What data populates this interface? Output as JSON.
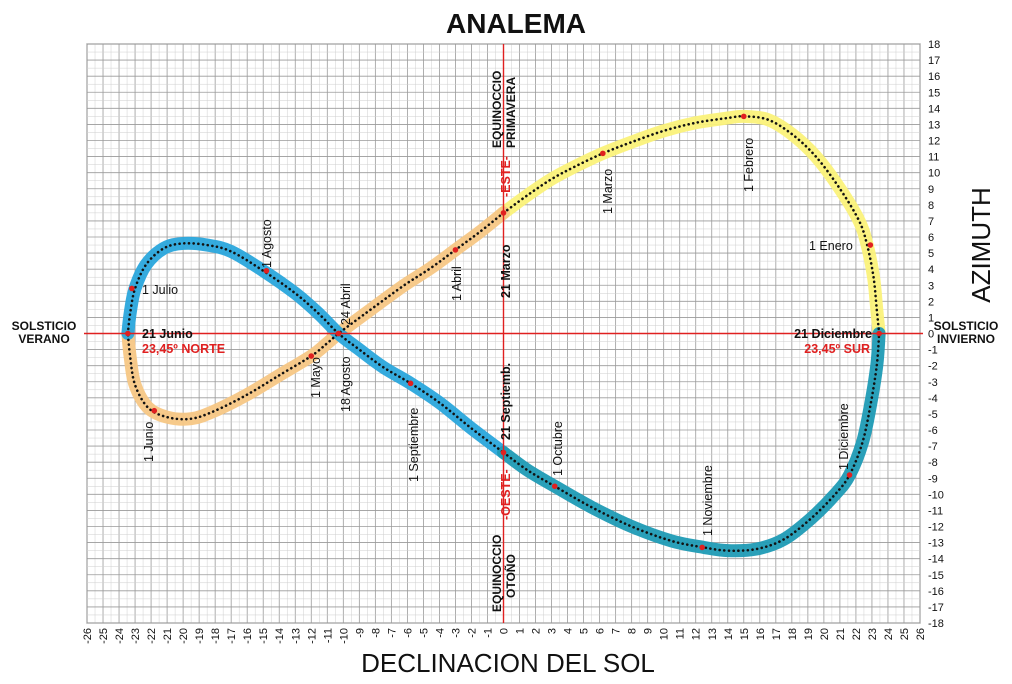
{
  "chart_data": {
    "type": "line",
    "title": "ANALEMA",
    "xlabel": "DECLINACION DEL SOL",
    "ylabel": "AZIMUTH",
    "xlim": [
      -26,
      26
    ],
    "ylim": [
      -18,
      18
    ],
    "x_ticks": [
      "-26",
      "-25",
      "-24",
      "-23",
      "-22",
      "-21",
      "-20",
      "-19",
      "-18",
      "-17",
      "-16",
      "-15",
      "-14",
      "-13",
      "-12",
      "-11",
      "-10",
      "-9",
      "-8",
      "-7",
      "-6",
      "-5",
      "-4",
      "-3",
      "-2",
      "-1",
      "0",
      "1",
      "2",
      "3",
      "4",
      "5",
      "6",
      "7",
      "8",
      "9",
      "10",
      "11",
      "12",
      "13",
      "14",
      "15",
      "16",
      "17",
      "18",
      "19",
      "20",
      "21",
      "22",
      "23",
      "24",
      "25",
      "26"
    ],
    "y_ticks": [
      "-18",
      "-17",
      "-16",
      "-15",
      "-14",
      "-13",
      "-12",
      "-11",
      "-10",
      "-9",
      "-8",
      "-7",
      "-6",
      "-5",
      "-4",
      "-3",
      "-2",
      "-1",
      "0",
      "1",
      "2",
      "3",
      "4",
      "5",
      "6",
      "7",
      "8",
      "9",
      "10",
      "11",
      "12",
      "13",
      "14",
      "15",
      "16",
      "17",
      "18"
    ],
    "grid": true,
    "series": [
      {
        "color": "#fbf27a",
        "points": [
          [
            0,
            7.5
          ],
          [
            1.5,
            8.6
          ],
          [
            3,
            9.6
          ],
          [
            4.5,
            10.4
          ],
          [
            6.2,
            11.2
          ],
          [
            8,
            11.9
          ],
          [
            10,
            12.6
          ],
          [
            12,
            13.1
          ],
          [
            14,
            13.4
          ],
          [
            15,
            13.5
          ],
          [
            16.5,
            13.3
          ],
          [
            18,
            12.4
          ],
          [
            19.5,
            11
          ],
          [
            21,
            9
          ],
          [
            22.2,
            7
          ],
          [
            22.7,
            5.5
          ],
          [
            23.1,
            3.5
          ],
          [
            23.3,
            1.5
          ],
          [
            23.45,
            0
          ]
        ]
      },
      {
        "color": "#f7c785",
        "points": [
          [
            0,
            7.5
          ],
          [
            -1.5,
            6.3
          ],
          [
            -3,
            5.2
          ],
          [
            -4.5,
            4.1
          ],
          [
            -6.2,
            3
          ],
          [
            -8,
            1.7
          ],
          [
            -9.5,
            0.6
          ],
          [
            -10.3,
            0
          ],
          [
            -11,
            -0.6
          ],
          [
            -12,
            -1.4
          ],
          [
            -14,
            -2.6
          ],
          [
            -16,
            -3.8
          ],
          [
            -18,
            -4.8
          ],
          [
            -19.5,
            -5.3
          ],
          [
            -21,
            -5.2
          ],
          [
            -22.2,
            -4.6
          ],
          [
            -23,
            -3.2
          ],
          [
            -23.3,
            -1.5
          ],
          [
            -23.45,
            0
          ]
        ]
      },
      {
        "color": "#2aa6dc",
        "points": [
          [
            -23.45,
            0
          ],
          [
            -23.3,
            1.3
          ],
          [
            -23,
            2.8
          ],
          [
            -22.3,
            4.3
          ],
          [
            -21.2,
            5.3
          ],
          [
            -20,
            5.6
          ],
          [
            -18.5,
            5.5
          ],
          [
            -17,
            5.1
          ],
          [
            -15,
            3.9
          ],
          [
            -13,
            2.5
          ],
          [
            -11.5,
            1.2
          ],
          [
            -10.3,
            0
          ],
          [
            -9,
            -1
          ],
          [
            -7.5,
            -2.1
          ],
          [
            -5.8,
            -3.1
          ],
          [
            -4,
            -4.3
          ],
          [
            -2,
            -5.9
          ],
          [
            0,
            -7.4
          ]
        ]
      },
      {
        "color": "#1f9bb5",
        "points": [
          [
            0,
            -7.4
          ],
          [
            1.5,
            -8.5
          ],
          [
            3.2,
            -9.5
          ],
          [
            5.5,
            -10.8
          ],
          [
            8,
            -12
          ],
          [
            10.5,
            -12.9
          ],
          [
            12.5,
            -13.3
          ],
          [
            14,
            -13.5
          ],
          [
            15.8,
            -13.4
          ],
          [
            17.5,
            -12.8
          ],
          [
            19.2,
            -11.5
          ],
          [
            20.7,
            -10
          ],
          [
            21.6,
            -8.8
          ],
          [
            22.4,
            -6.8
          ],
          [
            22.9,
            -4.5
          ],
          [
            23.3,
            -2
          ],
          [
            23.45,
            0
          ]
        ]
      }
    ],
    "markers": [
      {
        "x": -23.2,
        "y": 2.8,
        "label": "1 Julio"
      },
      {
        "x": -14.8,
        "y": 3.9,
        "label": "1 Agosto"
      },
      {
        "x": -5.8,
        "y": -3.1,
        "label": "1 Septiembre"
      },
      {
        "x": 3.2,
        "y": -9.5,
        "label": "1 Octubre"
      },
      {
        "x": 12.4,
        "y": -13.3,
        "label": "1 Noviembre"
      },
      {
        "x": 21.6,
        "y": -8.8,
        "label": "1 Diciembre"
      },
      {
        "x": 22.9,
        "y": 5.5,
        "label": "1 Enero"
      },
      {
        "x": 15,
        "y": 13.5,
        "label": "1 Febrero"
      },
      {
        "x": 6.2,
        "y": 11.2,
        "label": "1 Marzo"
      },
      {
        "x": -3,
        "y": 5.2,
        "label": "1 Abril"
      },
      {
        "x": -12,
        "y": -1.4,
        "label": "1 Mayo"
      },
      {
        "x": -21.8,
        "y": -4.8,
        "label": "1 Junio"
      },
      {
        "x": -10.3,
        "y": 0,
        "label": "24 Abril"
      },
      {
        "x": -10.3,
        "y": 0,
        "label": "18 Agosto"
      },
      {
        "x": -23.45,
        "y": 0,
        "label": "21 Junio"
      },
      {
        "x": 23.45,
        "y": 0,
        "label": "21 Diciembre"
      },
      {
        "x": 0,
        "y": 7.5,
        "label": "21 Marzo"
      },
      {
        "x": 0,
        "y": -7.4,
        "label": "21 Septiemb."
      }
    ],
    "annotations": {
      "solsticio_verano": [
        "SOLSTICIO",
        "VERANO"
      ],
      "solsticio_invierno": [
        "SOLSTICIO",
        "INVIERNO"
      ],
      "equinoccio_primavera": [
        "EQUINOCCIO",
        "PRIMAVERA"
      ],
      "equinoccio_otono": [
        "EQUINOCCIO",
        "OTOÑO"
      ],
      "norte": "23,45º NORTE",
      "sur": "23,45º SUR",
      "este": "-ESTE-",
      "oeste": "-OESTE-"
    },
    "colors": {
      "axis_lines": "#e02020",
      "grid": "#b5b5b5",
      "dots": "#111111",
      "markers": "#e02020"
    }
  }
}
